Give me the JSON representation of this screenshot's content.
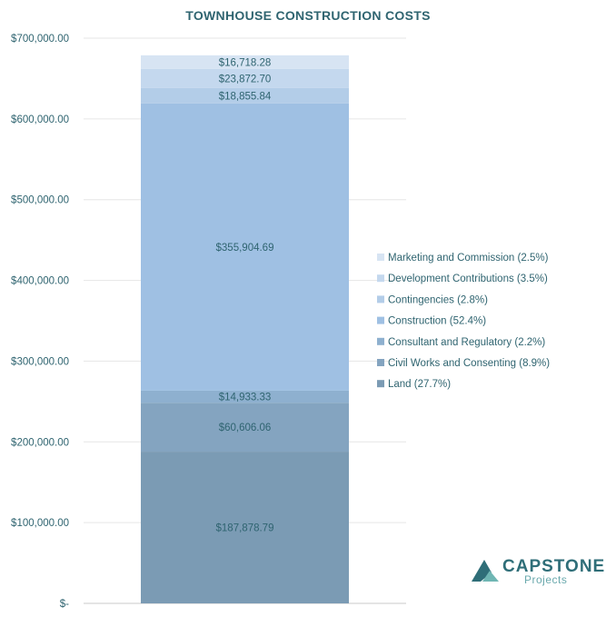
{
  "chart_data": {
    "type": "bar",
    "stacked": true,
    "title": "TOWNHOUSE CONSTRUCTION COSTS",
    "xlabel": "",
    "ylabel": "",
    "ylim": [
      0,
      700000
    ],
    "yticks": [
      {
        "value": 0,
        "label": "$-"
      },
      {
        "value": 100000,
        "label": "$100,000.00"
      },
      {
        "value": 200000,
        "label": "$200,000.00"
      },
      {
        "value": 300000,
        "label": "$300,000.00"
      },
      {
        "value": 400000,
        "label": "$400,000.00"
      },
      {
        "value": 500000,
        "label": "$500,000.00"
      },
      {
        "value": 600000,
        "label": "$600,000.00"
      },
      {
        "value": 700000,
        "label": "$700,000.00"
      }
    ],
    "grid": true,
    "legend_position": "right",
    "series": [
      {
        "name": "Land (27.7%)",
        "value": 187878.79,
        "label": "$187,878.79",
        "color": "#7b9bb4"
      },
      {
        "name": "Civil Works and Consenting (8.9%)",
        "value": 60606.06,
        "label": "$60,606.06",
        "color": "#84a4c0"
      },
      {
        "name": "Consultant and Regulatory (2.2%)",
        "value": 14933.33,
        "label": "$14,933.33",
        "color": "#8eb0cf"
      },
      {
        "name": "Construction (52.4%)",
        "value": 355904.69,
        "label": "$355,904.69",
        "color": "#9fc0e3"
      },
      {
        "name": "Contingencies (2.8%)",
        "value": 18855.84,
        "label": "$18,855.84",
        "color": "#b3cde8"
      },
      {
        "name": "Development Contributions (3.5%)",
        "value": 23872.7,
        "label": "$23,872.70",
        "color": "#c4d8ee"
      },
      {
        "name": "Marketing and Commission (2.5%)",
        "value": 16718.28,
        "label": "$16,718.28",
        "color": "#d7e4f3"
      }
    ]
  },
  "logo": {
    "word": "CAPSTONE",
    "sub": "Projects",
    "color_dark": "#2f6e78",
    "color_light": "#6fb6b3"
  }
}
